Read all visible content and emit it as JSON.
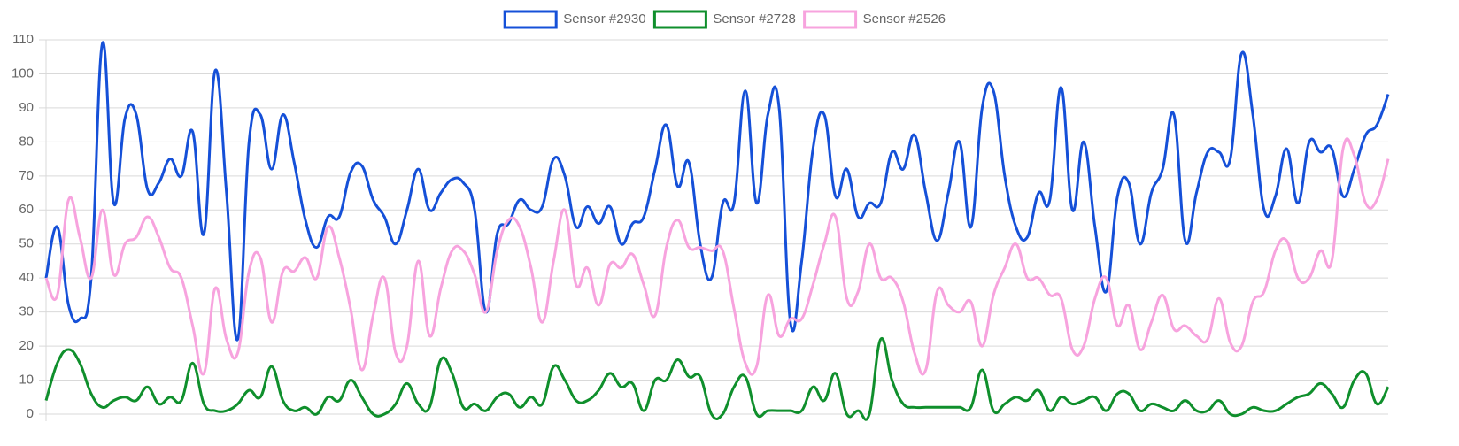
{
  "chart_data": {
    "type": "line",
    "legend": "top",
    "grid": true,
    "ylim": [
      0,
      110
    ],
    "yticks": [
      0,
      10,
      20,
      30,
      40,
      50,
      60,
      70,
      80,
      90,
      100,
      110
    ],
    "series": [
      {
        "name": "Sensor #2930",
        "color": "#1550d8",
        "values": [
          40,
          55,
          32,
          28,
          40,
          109,
          62,
          87,
          88,
          66,
          68,
          75,
          70,
          83,
          53,
          101,
          65,
          22,
          80,
          88,
          72,
          88,
          74,
          57,
          49,
          58,
          58,
          71,
          73,
          63,
          58,
          50,
          60,
          72,
          60,
          65,
          69,
          68,
          60,
          30,
          53,
          56,
          63,
          60,
          61,
          75,
          70,
          55,
          61,
          56,
          61,
          50,
          56,
          58,
          72,
          85,
          67,
          74,
          50,
          40,
          62,
          62,
          95,
          62,
          88,
          90,
          27,
          45,
          78,
          88,
          64,
          72,
          58,
          62,
          62,
          77,
          72,
          82,
          65,
          51,
          65,
          80,
          55,
          90,
          95,
          70,
          55,
          52,
          65,
          63,
          96,
          60,
          80,
          55,
          36,
          64,
          68,
          50,
          65,
          72,
          88,
          51,
          65,
          77,
          77,
          75,
          106,
          88,
          60,
          64,
          78,
          62,
          80,
          77,
          78,
          64,
          72,
          82,
          85,
          94
        ]
      },
      {
        "name": "Sensor #2728",
        "color": "#0f8f2c",
        "values": [
          4,
          15,
          19,
          15,
          6,
          2,
          4,
          5,
          4,
          8,
          3,
          5,
          4,
          15,
          3,
          1,
          1,
          3,
          7,
          5,
          14,
          4,
          1,
          2,
          0,
          5,
          4,
          10,
          5,
          0,
          0,
          3,
          9,
          3,
          2,
          16,
          12,
          2,
          3,
          1,
          5,
          6,
          2,
          5,
          3,
          14,
          10,
          4,
          4,
          7,
          12,
          8,
          9,
          1,
          10,
          10,
          16,
          11,
          11,
          0,
          0,
          8,
          11,
          0,
          1,
          1,
          1,
          1,
          8,
          4,
          12,
          0,
          1,
          0,
          22,
          10,
          3,
          2,
          2,
          2,
          2,
          2,
          2,
          13,
          1,
          3,
          5,
          4,
          7,
          1,
          5,
          3,
          4,
          5,
          1,
          6,
          6,
          1,
          3,
          2,
          1,
          4,
          1,
          1,
          4,
          0,
          0,
          2,
          1,
          1,
          3,
          5,
          6,
          9,
          6,
          2,
          10,
          12,
          3,
          8
        ]
      },
      {
        "name": "Sensor #2526",
        "color": "#f7a3de",
        "values": [
          40,
          35,
          63,
          52,
          40,
          60,
          41,
          50,
          52,
          58,
          52,
          43,
          40,
          26,
          12,
          37,
          22,
          18,
          42,
          46,
          27,
          42,
          42,
          46,
          40,
          55,
          46,
          31,
          13,
          29,
          40,
          18,
          20,
          45,
          23,
          37,
          48,
          48,
          41,
          30,
          48,
          57,
          55,
          43,
          27,
          45,
          60,
          38,
          43,
          32,
          44,
          43,
          47,
          38,
          29,
          49,
          57,
          49,
          49,
          48,
          48,
          31,
          15,
          14,
          35,
          23,
          28,
          28,
          38,
          50,
          58,
          34,
          36,
          50,
          40,
          40,
          33,
          18,
          13,
          36,
          32,
          30,
          33,
          20,
          35,
          43,
          50,
          40,
          40,
          35,
          34,
          19,
          20,
          34,
          40,
          26,
          32,
          19,
          27,
          35,
          25,
          26,
          23,
          22,
          34,
          21,
          20,
          33,
          36,
          48,
          51,
          40,
          40,
          48,
          45,
          78,
          76,
          62,
          63,
          75
        ]
      }
    ]
  }
}
